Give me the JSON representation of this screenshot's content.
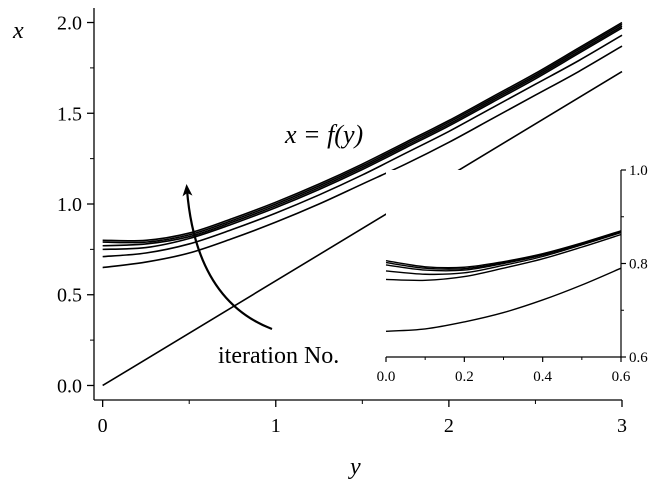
{
  "chart_data": [
    {
      "type": "line",
      "xlabel": "y",
      "ylabel": "x",
      "xlim": [
        -0.05,
        3.0
      ],
      "ylim": [
        -0.08,
        2.08
      ],
      "x_ticks": [
        0,
        1,
        2,
        3
      ],
      "x_tick_labels": [
        "0",
        "1",
        "2",
        "3"
      ],
      "y_ticks": [
        0.0,
        0.5,
        1.0,
        1.5,
        2.0
      ],
      "y_tick_labels": [
        "0.0",
        "0.5",
        "1.0",
        "1.5",
        "2.0"
      ],
      "grid": false,
      "series": [
        {
          "x": [
            0,
            0.25,
            0.5,
            0.75,
            1.0,
            1.25,
            1.5,
            1.75,
            2.0,
            2.25,
            2.5,
            2.75,
            3.0
          ],
          "values": [
            0.65,
            0.68,
            0.73,
            0.81,
            0.9,
            1.0,
            1.11,
            1.22,
            1.34,
            1.47,
            1.6,
            1.73,
            1.87
          ]
        },
        {
          "x": [
            0,
            0.25,
            0.5,
            0.75,
            1.0,
            1.25,
            1.5,
            1.75,
            2.0,
            2.25,
            2.5,
            2.75,
            3.0
          ],
          "values": [
            0.71,
            0.73,
            0.78,
            0.86,
            0.95,
            1.05,
            1.16,
            1.28,
            1.4,
            1.53,
            1.66,
            1.79,
            1.93
          ]
        },
        {
          "x": [
            0,
            0.25,
            0.5,
            0.75,
            1.0,
            1.25,
            1.5,
            1.75,
            2.0,
            2.25,
            2.5,
            2.75,
            3.0
          ],
          "values": [
            0.75,
            0.76,
            0.81,
            0.89,
            0.98,
            1.08,
            1.19,
            1.31,
            1.43,
            1.56,
            1.69,
            1.83,
            1.97
          ]
        },
        {
          "x": [
            0,
            0.25,
            0.5,
            0.75,
            1.0,
            1.25,
            1.5,
            1.75,
            2.0,
            2.25,
            2.5,
            2.75,
            3.0
          ],
          "values": [
            0.77,
            0.78,
            0.82,
            0.9,
            0.99,
            1.09,
            1.2,
            1.32,
            1.44,
            1.57,
            1.7,
            1.84,
            1.98
          ]
        },
        {
          "x": [
            0,
            0.25,
            0.5,
            0.75,
            1.0,
            1.25,
            1.5,
            1.75,
            2.0,
            2.25,
            2.5,
            2.75,
            3.0
          ],
          "values": [
            0.79,
            0.79,
            0.83,
            0.91,
            1.0,
            1.1,
            1.21,
            1.33,
            1.45,
            1.58,
            1.71,
            1.85,
            1.99
          ]
        },
        {
          "x": [
            0,
            0.25,
            0.5,
            0.75,
            1.0,
            1.25,
            1.5,
            1.75,
            2.0,
            2.25,
            2.5,
            2.75,
            3.0
          ],
          "values": [
            0.8,
            0.8,
            0.84,
            0.92,
            1.01,
            1.11,
            1.22,
            1.34,
            1.46,
            1.59,
            1.72,
            1.86,
            2.0
          ]
        },
        {
          "x": [
            0,
            3.0
          ],
          "values": [
            0.0,
            1.73
          ]
        }
      ],
      "annotations": [
        "x = f(y)",
        "iteration No."
      ]
    },
    {
      "type": "line",
      "inset": true,
      "xlim": [
        0.0,
        0.6
      ],
      "ylim": [
        0.6,
        1.0
      ],
      "x_ticks": [
        0.0,
        0.2,
        0.4,
        0.6
      ],
      "x_tick_labels": [
        "0.0",
        "0.2",
        "0.4",
        "0.6"
      ],
      "y_ticks": [
        0.6,
        0.8,
        1.0
      ],
      "y_tick_labels": [
        "0.6",
        "0.8",
        "1.0"
      ],
      "y_axis_side": "right",
      "grid": false,
      "series": [
        {
          "x": [
            0,
            0.1,
            0.2,
            0.3,
            0.4,
            0.5,
            0.6
          ],
          "values": [
            0.655,
            0.66,
            0.675,
            0.695,
            0.722,
            0.754,
            0.79
          ]
        },
        {
          "x": [
            0,
            0.1,
            0.2,
            0.3,
            0.4,
            0.5,
            0.6
          ],
          "values": [
            0.766,
            0.764,
            0.772,
            0.79,
            0.81,
            0.835,
            0.862
          ]
        },
        {
          "x": [
            0,
            0.1,
            0.2,
            0.3,
            0.4,
            0.5,
            0.6
          ],
          "values": [
            0.784,
            0.777,
            0.78,
            0.796,
            0.815,
            0.84,
            0.866
          ]
        },
        {
          "x": [
            0,
            0.1,
            0.2,
            0.3,
            0.4,
            0.5,
            0.6
          ],
          "values": [
            0.797,
            0.786,
            0.786,
            0.8,
            0.818,
            0.842,
            0.868
          ]
        },
        {
          "x": [
            0,
            0.1,
            0.2,
            0.3,
            0.4,
            0.5,
            0.6
          ],
          "values": [
            0.802,
            0.79,
            0.789,
            0.802,
            0.82,
            0.843,
            0.869
          ]
        },
        {
          "x": [
            0,
            0.1,
            0.2,
            0.3,
            0.4,
            0.5,
            0.6
          ],
          "values": [
            0.806,
            0.793,
            0.792,
            0.804,
            0.821,
            0.844,
            0.87
          ]
        }
      ]
    }
  ]
}
